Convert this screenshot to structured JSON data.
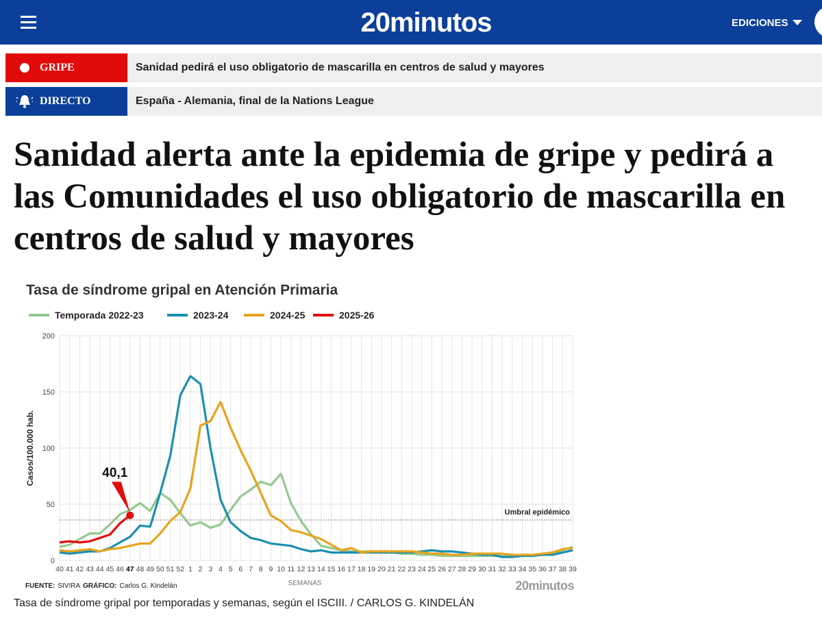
{
  "header": {
    "logo": "20minutos",
    "editions": "EDICIONES"
  },
  "alerts": [
    {
      "label": "GRIPE",
      "text": "Sanidad pedirá el uso obligatorio de mascarilla en centros de salud y mayores"
    },
    {
      "label": "DIRECTO",
      "text": "España - Alemania, final de la Nations League"
    }
  ],
  "headline": "Sanidad alerta ante la epidemia de gripe y pedirá a las Comunidades el uso obligatorio de mascarilla en centros de salud y mayores",
  "chart_data": {
    "type": "line",
    "title": "Tasa de síndrome gripal en Atención Primaria",
    "y_label": "Casos/100.000 hab.",
    "x_label": "SEMANAS",
    "source_label": "FUENTE:",
    "source": "SIVIRA",
    "graphic_label": "GRÁFICO:",
    "graphic": "Carlos G. Kindelán",
    "watermark": "20minutos",
    "categories": [
      "40",
      "41",
      "42",
      "43",
      "44",
      "45",
      "46",
      "47",
      "48",
      "49",
      "50",
      "51",
      "52",
      "1",
      "2",
      "3",
      "4",
      "5",
      "6",
      "7",
      "8",
      "9",
      "10",
      "11",
      "12",
      "13",
      "14",
      "15",
      "16",
      "17",
      "18",
      "19",
      "20",
      "21",
      "22",
      "23",
      "24",
      "25",
      "26",
      "27",
      "28",
      "29",
      "30",
      "31",
      "32",
      "33",
      "34",
      "35",
      "36",
      "37",
      "38",
      "39"
    ],
    "highlight_category": "47",
    "ylim": [
      0,
      200
    ],
    "yticks": [
      0,
      50,
      100,
      150,
      200
    ],
    "grid": true,
    "threshold": {
      "value": 36,
      "label": "Umbral epidémico"
    },
    "series": [
      {
        "name": "Temporada 2022-23",
        "color": "#93c98f",
        "values": [
          12,
          14,
          19,
          24,
          24,
          32,
          41,
          45,
          51,
          44,
          60,
          54,
          42,
          31,
          34,
          29,
          32,
          45,
          57,
          63,
          70,
          67,
          77,
          51,
          35,
          23,
          13,
          11,
          9,
          8,
          8,
          8,
          7,
          7,
          6,
          6,
          5,
          5,
          4,
          4,
          4,
          4,
          4,
          4,
          4,
          4,
          5,
          5,
          5,
          6,
          9,
          12
        ]
      },
      {
        "name": "2023-24",
        "color": "#1b8fb0",
        "values": [
          7,
          6,
          7,
          8,
          8,
          11,
          16,
          21,
          31,
          30,
          60,
          93,
          147,
          164,
          157,
          100,
          54,
          34,
          26,
          20,
          18,
          15,
          14,
          13,
          10,
          8,
          9,
          7,
          7,
          7,
          7,
          7,
          7,
          7,
          7,
          7,
          8,
          9,
          8,
          8,
          7,
          6,
          5,
          5,
          3,
          3,
          4,
          4,
          5,
          5,
          7,
          9
        ]
      },
      {
        "name": "2024-25",
        "color": "#e8a31a",
        "values": [
          9,
          8,
          9,
          10,
          8,
          10,
          11,
          13,
          15,
          15,
          24,
          35,
          43,
          64,
          120,
          124,
          141,
          118,
          98,
          80,
          60,
          40,
          35,
          27,
          25,
          22,
          19,
          14,
          9,
          11,
          7,
          8,
          8,
          8,
          8,
          8,
          7,
          6,
          6,
          5,
          5,
          6,
          6,
          6,
          6,
          5,
          5,
          5,
          6,
          7,
          10,
          11
        ]
      },
      {
        "name": "2025-26",
        "color": "#e30d0d",
        "values": [
          16,
          17,
          16,
          17,
          20,
          23,
          33,
          40.1,
          null,
          null,
          null,
          null,
          null,
          null,
          null,
          null,
          null,
          null,
          null,
          null,
          null,
          null,
          null,
          null,
          null,
          null,
          null,
          null,
          null,
          null,
          null,
          null,
          null,
          null,
          null,
          null,
          null,
          null,
          null,
          null,
          null,
          null,
          null,
          null,
          null,
          null,
          null,
          null,
          null,
          null,
          null,
          null
        ],
        "value_labels": [
          null,
          null,
          null,
          null,
          null,
          null,
          null,
          "40,1",
          null,
          null,
          null,
          null,
          null,
          null,
          null,
          null,
          null,
          null,
          null,
          null,
          null,
          null,
          null,
          null,
          null,
          null,
          null,
          null,
          null,
          null,
          null,
          null,
          null,
          null,
          null,
          null,
          null,
          null,
          null,
          null,
          null,
          null,
          null,
          null,
          null,
          null,
          null,
          null,
          null,
          null,
          null,
          null
        ]
      }
    ]
  },
  "caption": "Tasa de síndrome gripal por temporadas y semanas, según el ISCIII. / CARLOS G. KINDELÁN"
}
